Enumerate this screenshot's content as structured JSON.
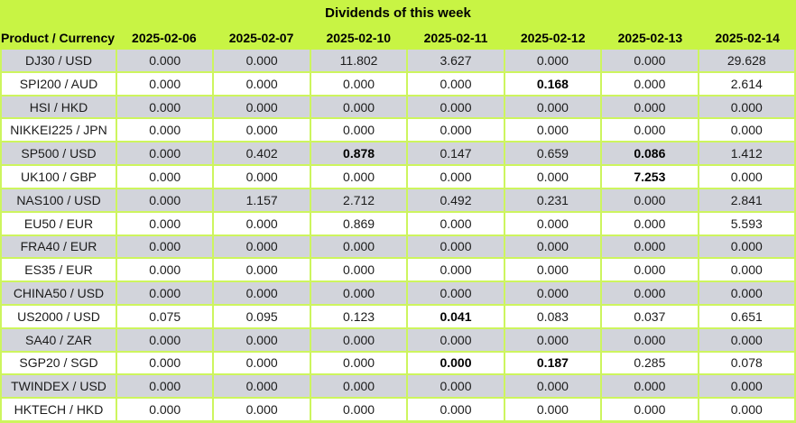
{
  "colors": {
    "header_green": "#c8f444",
    "grid_green": "#cdf55e",
    "row_gray": "#d2d4db",
    "row_white": "#ffffff",
    "text": "#1b1b1b"
  },
  "chart_data": {
    "type": "table",
    "title": "Dividends of this week",
    "product_header": "Product / Currency",
    "date_headers": [
      "2025-02-06",
      "2025-02-07",
      "2025-02-10",
      "2025-02-11",
      "2025-02-12",
      "2025-02-13",
      "2025-02-14"
    ],
    "rows": [
      {
        "product": "DJ30 / USD",
        "values": [
          "0.000",
          "0.000",
          "11.802",
          "3.627",
          "0.000",
          "0.000",
          "29.628"
        ],
        "bold_indices": []
      },
      {
        "product": "SPI200 / AUD",
        "values": [
          "0.000",
          "0.000",
          "0.000",
          "0.000",
          "0.168",
          "0.000",
          "2.614"
        ],
        "bold_indices": [
          4
        ]
      },
      {
        "product": "HSI / HKD",
        "values": [
          "0.000",
          "0.000",
          "0.000",
          "0.000",
          "0.000",
          "0.000",
          "0.000"
        ],
        "bold_indices": []
      },
      {
        "product": "NIKKEI225 / JPN",
        "values": [
          "0.000",
          "0.000",
          "0.000",
          "0.000",
          "0.000",
          "0.000",
          "0.000"
        ],
        "bold_indices": []
      },
      {
        "product": "SP500 / USD",
        "values": [
          "0.000",
          "0.402",
          "0.878",
          "0.147",
          "0.659",
          "0.086",
          "1.412"
        ],
        "bold_indices": [
          2,
          5
        ]
      },
      {
        "product": "UK100 / GBP",
        "values": [
          "0.000",
          "0.000",
          "0.000",
          "0.000",
          "0.000",
          "7.253",
          "0.000"
        ],
        "bold_indices": [
          5
        ]
      },
      {
        "product": "NAS100 / USD",
        "values": [
          "0.000",
          "1.157",
          "2.712",
          "0.492",
          "0.231",
          "0.000",
          "2.841"
        ],
        "bold_indices": []
      },
      {
        "product": "EU50 / EUR",
        "values": [
          "0.000",
          "0.000",
          "0.869",
          "0.000",
          "0.000",
          "0.000",
          "5.593"
        ],
        "bold_indices": []
      },
      {
        "product": "FRA40 / EUR",
        "values": [
          "0.000",
          "0.000",
          "0.000",
          "0.000",
          "0.000",
          "0.000",
          "0.000"
        ],
        "bold_indices": []
      },
      {
        "product": "ES35 / EUR",
        "values": [
          "0.000",
          "0.000",
          "0.000",
          "0.000",
          "0.000",
          "0.000",
          "0.000"
        ],
        "bold_indices": []
      },
      {
        "product": "CHINA50 / USD",
        "values": [
          "0.000",
          "0.000",
          "0.000",
          "0.000",
          "0.000",
          "0.000",
          "0.000"
        ],
        "bold_indices": []
      },
      {
        "product": "US2000 / USD",
        "values": [
          "0.075",
          "0.095",
          "0.123",
          "0.041",
          "0.083",
          "0.037",
          "0.651"
        ],
        "bold_indices": [
          3
        ]
      },
      {
        "product": "SA40 / ZAR",
        "values": [
          "0.000",
          "0.000",
          "0.000",
          "0.000",
          "0.000",
          "0.000",
          "0.000"
        ],
        "bold_indices": []
      },
      {
        "product": "SGP20 / SGD",
        "values": [
          "0.000",
          "0.000",
          "0.000",
          "0.000",
          "0.187",
          "0.285",
          "0.078"
        ],
        "bold_indices": [
          3,
          4
        ]
      },
      {
        "product": "TWINDEX / USD",
        "values": [
          "0.000",
          "0.000",
          "0.000",
          "0.000",
          "0.000",
          "0.000",
          "0.000"
        ],
        "bold_indices": []
      },
      {
        "product": "HKTECH / HKD",
        "values": [
          "0.000",
          "0.000",
          "0.000",
          "0.000",
          "0.000",
          "0.000",
          "0.000"
        ],
        "bold_indices": []
      }
    ]
  }
}
